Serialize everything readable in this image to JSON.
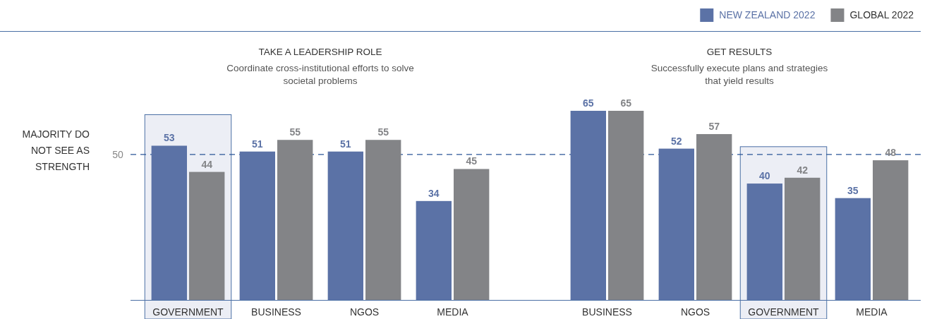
{
  "chart_data": [
    {
      "type": "bar",
      "title": "TAKE A LEADERSHIP ROLE",
      "subtitle": "Coordinate cross-institutional efforts to solve societal problems",
      "categories": [
        "GOVERNMENT",
        "BUSINESS",
        "NGOS",
        "MEDIA"
      ],
      "series": [
        {
          "color": "#5b72a6",
          "values": [
            53,
            51,
            51,
            34
          ]
        },
        {
          "color": "#838487",
          "values": [
            44,
            55,
            55,
            45
          ]
        }
      ],
      "tick_labels": "x",
      "data_labels": true,
      "annotations": [
        "MAJORITY DO NOT SEE AS STRENGTH"
      ],
      "ref_lines": [
        {
          "axis": "y",
          "value": 50,
          "label": "50",
          "line_style": "dashed",
          "color": "#2a5597"
        }
      ],
      "bands": [
        {
          "axis": "x",
          "from": "GOVERNMENT",
          "to": "GOVERNMENT",
          "color": "#eceef5"
        }
      ]
    },
    {
      "type": "bar",
      "title": "GET RESULTS",
      "subtitle": "Successfully execute plans and strategies that yield results",
      "categories": [
        "BUSINESS",
        "NGOS",
        "GOVERNMENT",
        "MEDIA"
      ],
      "series": [
        {
          "name": "NEW ZEALAND 2022",
          "color": "#5b72a6",
          "values": [
            65,
            52,
            40,
            35
          ]
        },
        {
          "name": "GLOBAL 2022",
          "color": "#838487",
          "values": [
            65,
            57,
            42,
            48
          ]
        }
      ],
      "tick_labels": "x",
      "data_labels": true,
      "legend": "top right",
      "ref_lines": [
        {
          "axis": "y",
          "value": 50,
          "line_style": "dashed",
          "color": "#2a5597"
        }
      ],
      "bands": [
        {
          "axis": "x",
          "from": "GOVERNMENT",
          "to": "GOVERNMENT",
          "color": "#eceef5"
        }
      ]
    }
  ]
}
